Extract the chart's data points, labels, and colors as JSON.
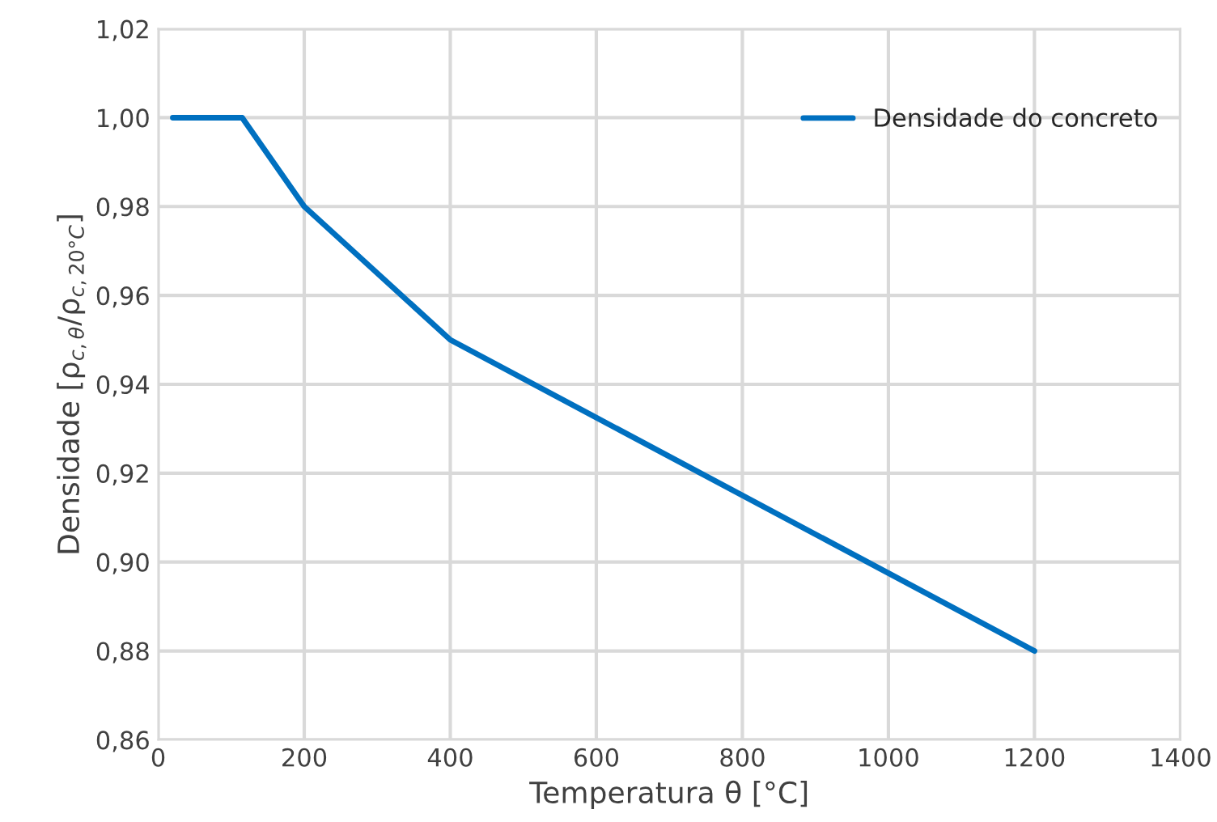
{
  "chart_data": {
    "type": "line",
    "xlabel": "Temperatura θ [°C]",
    "ylabel": "Densidade [ρ$_{c,θ}$/ρ$_{c,20°C}$]",
    "x": [
      20,
      115,
      200,
      400,
      1200
    ],
    "series": [
      {
        "name": "Densidade do concreto",
        "color": "#0070c0",
        "values": [
          1.0,
          1.0,
          0.98,
          0.95,
          0.88
        ]
      }
    ],
    "xlim": [
      0,
      1400
    ],
    "xticks": [
      0,
      200,
      400,
      600,
      800,
      1000,
      1200,
      1400
    ],
    "ylim": [
      0.86,
      1.02
    ],
    "yticks": [
      {
        "value": 0.86,
        "label": "0,86"
      },
      {
        "value": 0.88,
        "label": "0,88"
      },
      {
        "value": 0.9,
        "label": "0,90"
      },
      {
        "value": 0.92,
        "label": "0,92"
      },
      {
        "value": 0.94,
        "label": "0,94"
      },
      {
        "value": 0.96,
        "label": "0,96"
      },
      {
        "value": 0.98,
        "label": "0,98"
      },
      {
        "value": 1.0,
        "label": "1,00"
      },
      {
        "value": 1.02,
        "label": "1,02"
      }
    ],
    "grid": true,
    "legend": "top right",
    "marker": "none",
    "line_style": "solid"
  }
}
